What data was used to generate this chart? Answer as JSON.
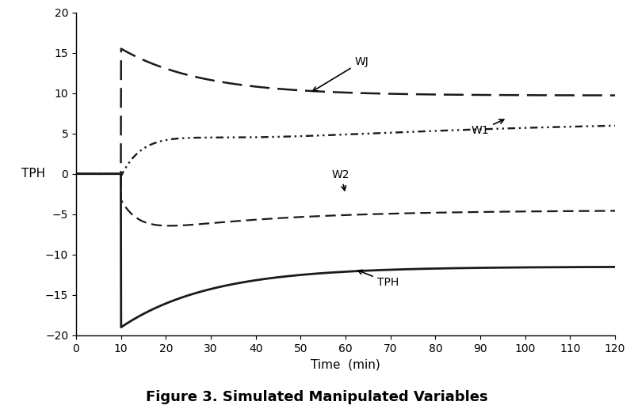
{
  "title": "Figure 3. Simulated Manipulated Variables",
  "xlabel": "Time  (min)",
  "ylabel": "TPH",
  "xlim": [
    0,
    120
  ],
  "ylim": [
    -20,
    20
  ],
  "xticks": [
    0,
    10,
    20,
    30,
    40,
    50,
    60,
    70,
    80,
    90,
    100,
    110,
    120
  ],
  "yticks": [
    -20,
    -15,
    -10,
    -5,
    0,
    5,
    10,
    15,
    20
  ],
  "background_color": "#ffffff",
  "line_color": "#1a1a1a",
  "WJ": {
    "peak": 15.5,
    "peak_t": 13,
    "settle": 9.7,
    "tau": 18,
    "linestyle_on": 9,
    "linestyle_off": 4
  },
  "W1": {
    "start_jump": 6.2,
    "dip_t": 20,
    "dip_val": 0.2,
    "settle": 6.5,
    "tau_rise": 40,
    "linestyle": "dot_dash"
  },
  "W2": {
    "dip": -4.5,
    "settle": -4.5,
    "tau": 12,
    "linestyle_on": 5,
    "linestyle_off": 3
  },
  "TPH": {
    "dip": -19.0,
    "dip_t": 14,
    "settle": -11.5,
    "tau": 20
  },
  "annot_fontsize": 10,
  "title_fontsize": 13
}
